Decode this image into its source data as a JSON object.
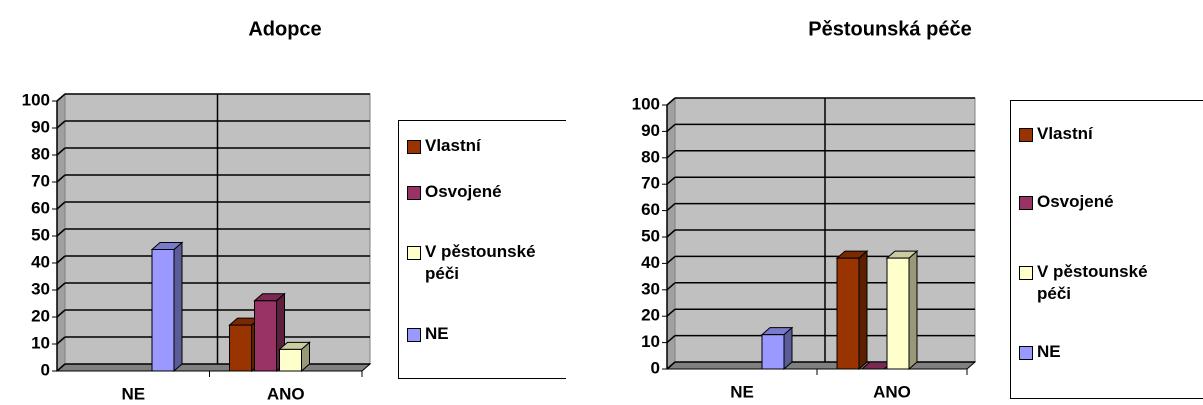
{
  "chart_data": [
    {
      "type": "bar3d",
      "title": "Adopce",
      "categories": [
        "NE",
        "ANO"
      ],
      "series": [
        {
          "name": "Vlastní",
          "color": "#993300",
          "values": [
            null,
            17
          ]
        },
        {
          "name": "Osvojené",
          "color": "#993366",
          "values": [
            null,
            26
          ]
        },
        {
          "name": "V pěstounské péči",
          "color": "#ffffcc",
          "values": [
            null,
            8
          ]
        },
        {
          "name": "NE",
          "color": "#9999ff",
          "values": [
            45,
            null
          ]
        }
      ],
      "ylim": [
        0,
        100
      ],
      "yticks": [
        0,
        10,
        20,
        30,
        40,
        50,
        60,
        70,
        80,
        90,
        100
      ],
      "grid": true,
      "legend": "right"
    },
    {
      "type": "bar3d",
      "title": "Pěstounská péče",
      "categories": [
        "NE",
        "ANO"
      ],
      "series": [
        {
          "name": "Vlastní",
          "color": "#993300",
          "values": [
            null,
            42
          ]
        },
        {
          "name": "Osvojené",
          "color": "#993366",
          "values": [
            null,
            0
          ]
        },
        {
          "name": "V pěstounské péči",
          "color": "#ffffcc",
          "values": [
            null,
            42
          ]
        },
        {
          "name": "NE",
          "color": "#9999ff",
          "values": [
            13,
            null
          ]
        }
      ],
      "ylim": [
        0,
        100
      ],
      "yticks": [
        0,
        10,
        20,
        30,
        40,
        50,
        60,
        70,
        80,
        90,
        100
      ],
      "grid": true,
      "legend": "right"
    }
  ]
}
